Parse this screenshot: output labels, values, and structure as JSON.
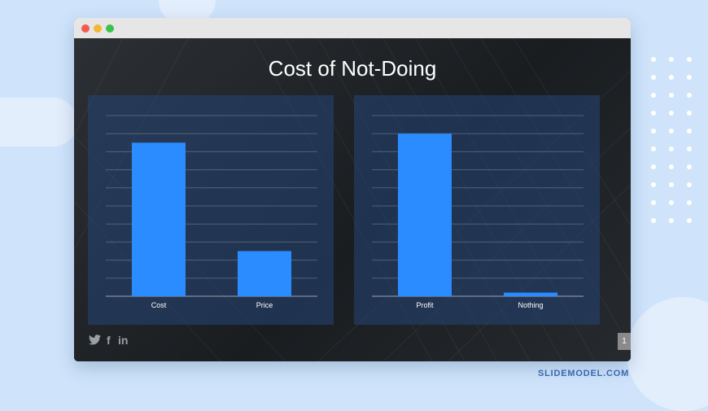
{
  "slide": {
    "title": "Cost of Not-Doing",
    "page_number": "1"
  },
  "social": {
    "icons": [
      "twitter-icon",
      "facebook-icon",
      "linkedin-icon"
    ],
    "facebook_glyph": "f",
    "linkedin_glyph": "in"
  },
  "brand": "SLIDEMODEL.COM",
  "colors": {
    "bar": "#2a8cff",
    "page_bg": "#cfe4fb",
    "slide_bg": "#1e2124"
  },
  "chart_data": [
    {
      "type": "bar",
      "categories": [
        "Cost",
        "Price"
      ],
      "values": [
        85,
        25
      ],
      "ylim": [
        0,
        100
      ],
      "grid": true
    },
    {
      "type": "bar",
      "categories": [
        "Profit",
        "Nothing"
      ],
      "values": [
        90,
        2
      ],
      "ylim": [
        0,
        100
      ],
      "grid": true
    }
  ]
}
